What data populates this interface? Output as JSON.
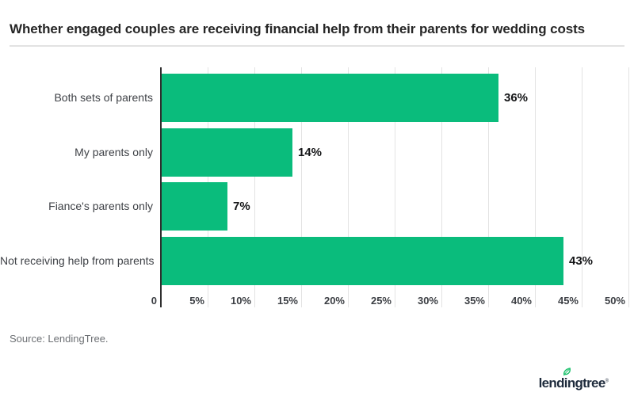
{
  "header": {
    "title": "Whether engaged couples are receiving financial help from their parents for wedding costs"
  },
  "chart_data": {
    "type": "bar",
    "orientation": "horizontal",
    "title": "Whether engaged couples are receiving financial help from their parents for wedding costs",
    "categories": [
      "Both sets of parents",
      "My parents only",
      "Fiance's parents only",
      "Not receiving help from parents"
    ],
    "values": [
      36,
      14,
      7,
      43
    ],
    "value_labels": [
      "36%",
      "14%",
      "7%",
      "43%"
    ],
    "x_ticks": [
      "0",
      "5%",
      "10%",
      "15%",
      "20%",
      "25%",
      "30%",
      "35%",
      "40%",
      "45%",
      "50%"
    ],
    "xlim": [
      0,
      50
    ],
    "grid": "vertical-gridlines-on",
    "legend": "none",
    "bar_color": "#0abc7c"
  },
  "footer": {
    "source": "Source: LendingTree.",
    "logo_pre": "lend",
    "logo_i": "i",
    "logo_post": "ngtree",
    "logo_reg": "®"
  },
  "colors": {
    "bar_green": "#0abc7c",
    "leaf_green": "#1fc26e",
    "logo_navy": "#1e2b3c",
    "axis_dark": "#2e2e2e",
    "gridline_gray": "#e3e3e3",
    "divider_gray": "#e2e2e2",
    "title_text": "#262626",
    "source_gray": "#6d7074",
    "background": "#ffffff"
  }
}
